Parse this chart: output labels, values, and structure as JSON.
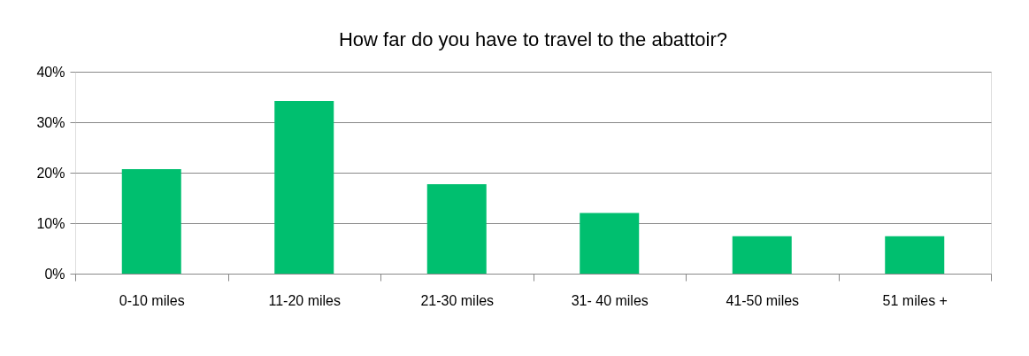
{
  "chart_data": {
    "type": "bar",
    "title": "How far do you have to travel to the abattoir?",
    "categories": [
      "0-10 miles",
      "11-20 miles",
      "21-30 miles",
      "31- 40 miles",
      "41-50 miles",
      "51 miles +"
    ],
    "values": [
      20.7,
      34.2,
      17.7,
      12.0,
      7.4,
      7.4
    ],
    "color": "#00bf6f",
    "ylim": [
      0,
      40
    ],
    "yticks": [
      {
        "value": 0,
        "label": "0%"
      },
      {
        "value": 10,
        "label": "10%"
      },
      {
        "value": 20,
        "label": "20%"
      },
      {
        "value": 30,
        "label": "30%"
      },
      {
        "value": 40,
        "label": "40%"
      }
    ],
    "grid": "y",
    "legend": false
  }
}
